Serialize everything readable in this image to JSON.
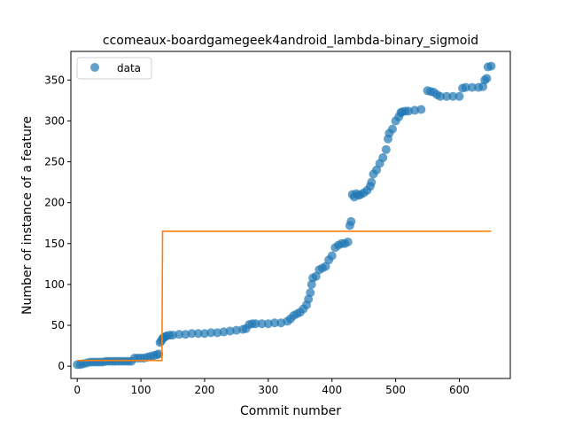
{
  "chart_data": {
    "type": "scatter",
    "title": "ccomeaux-boardgamegeek4android_lambda-binary_sigmoid",
    "xlabel": "Commit number",
    "ylabel": "Number of instance of a feature",
    "xlim": [
      -10,
      680
    ],
    "ylim": [
      -15,
      385
    ],
    "xticks": [
      0,
      100,
      200,
      300,
      400,
      500,
      600
    ],
    "yticks": [
      0,
      50,
      100,
      150,
      200,
      250,
      300,
      350
    ],
    "grid": false,
    "legend": {
      "position": "top-left",
      "entries": [
        "data"
      ]
    },
    "series": [
      {
        "name": "data",
        "kind": "points",
        "color": "#1f77b4",
        "points": [
          [
            0,
            2
          ],
          [
            5,
            2
          ],
          [
            10,
            3
          ],
          [
            15,
            4
          ],
          [
            20,
            5
          ],
          [
            25,
            5
          ],
          [
            30,
            5
          ],
          [
            35,
            5
          ],
          [
            40,
            5
          ],
          [
            45,
            6
          ],
          [
            50,
            6
          ],
          [
            55,
            6
          ],
          [
            60,
            6
          ],
          [
            65,
            6
          ],
          [
            70,
            6
          ],
          [
            75,
            6
          ],
          [
            80,
            6
          ],
          [
            85,
            6
          ],
          [
            90,
            10
          ],
          [
            95,
            10
          ],
          [
            100,
            10
          ],
          [
            105,
            10
          ],
          [
            110,
            11
          ],
          [
            115,
            12
          ],
          [
            120,
            13
          ],
          [
            125,
            14
          ],
          [
            128,
            15
          ],
          [
            130,
            29
          ],
          [
            132,
            31
          ],
          [
            134,
            34
          ],
          [
            136,
            35
          ],
          [
            138,
            36
          ],
          [
            140,
            37
          ],
          [
            145,
            38
          ],
          [
            150,
            38
          ],
          [
            160,
            39
          ],
          [
            170,
            39
          ],
          [
            180,
            40
          ],
          [
            190,
            40
          ],
          [
            200,
            40
          ],
          [
            210,
            41
          ],
          [
            220,
            41
          ],
          [
            230,
            42
          ],
          [
            240,
            43
          ],
          [
            250,
            44
          ],
          [
            260,
            45
          ],
          [
            265,
            46
          ],
          [
            270,
            51
          ],
          [
            275,
            52
          ],
          [
            280,
            52
          ],
          [
            290,
            52
          ],
          [
            300,
            52
          ],
          [
            310,
            53
          ],
          [
            320,
            53
          ],
          [
            330,
            55
          ],
          [
            335,
            58
          ],
          [
            340,
            62
          ],
          [
            345,
            64
          ],
          [
            350,
            66
          ],
          [
            355,
            70
          ],
          [
            360,
            75
          ],
          [
            363,
            82
          ],
          [
            366,
            90
          ],
          [
            368,
            100
          ],
          [
            370,
            108
          ],
          [
            375,
            110
          ],
          [
            380,
            118
          ],
          [
            385,
            120
          ],
          [
            390,
            122
          ],
          [
            395,
            130
          ],
          [
            400,
            135
          ],
          [
            405,
            145
          ],
          [
            410,
            148
          ],
          [
            415,
            150
          ],
          [
            420,
            150
          ],
          [
            425,
            152
          ],
          [
            428,
            172
          ],
          [
            430,
            177
          ],
          [
            432,
            210
          ],
          [
            435,
            207
          ],
          [
            438,
            211
          ],
          [
            442,
            209
          ],
          [
            445,
            210
          ],
          [
            450,
            212
          ],
          [
            455,
            215
          ],
          [
            460,
            220
          ],
          [
            462,
            225
          ],
          [
            465,
            235
          ],
          [
            470,
            240
          ],
          [
            475,
            248
          ],
          [
            480,
            255
          ],
          [
            485,
            265
          ],
          [
            488,
            278
          ],
          [
            490,
            285
          ],
          [
            495,
            290
          ],
          [
            500,
            300
          ],
          [
            505,
            305
          ],
          [
            508,
            310
          ],
          [
            510,
            311
          ],
          [
            515,
            312
          ],
          [
            520,
            312
          ],
          [
            530,
            313
          ],
          [
            540,
            314
          ],
          [
            550,
            337
          ],
          [
            555,
            336
          ],
          [
            560,
            335
          ],
          [
            565,
            332
          ],
          [
            570,
            330
          ],
          [
            580,
            330
          ],
          [
            590,
            330
          ],
          [
            600,
            330
          ],
          [
            605,
            340
          ],
          [
            610,
            341
          ],
          [
            620,
            341
          ],
          [
            630,
            341
          ],
          [
            637,
            342
          ],
          [
            640,
            350
          ],
          [
            643,
            352
          ],
          [
            645,
            366
          ],
          [
            650,
            367
          ]
        ]
      },
      {
        "name": "",
        "kind": "line",
        "color": "#ff7f0e",
        "points": [
          [
            0,
            7
          ],
          [
            133,
            7
          ],
          [
            134,
            165
          ],
          [
            650,
            165
          ]
        ]
      }
    ]
  }
}
